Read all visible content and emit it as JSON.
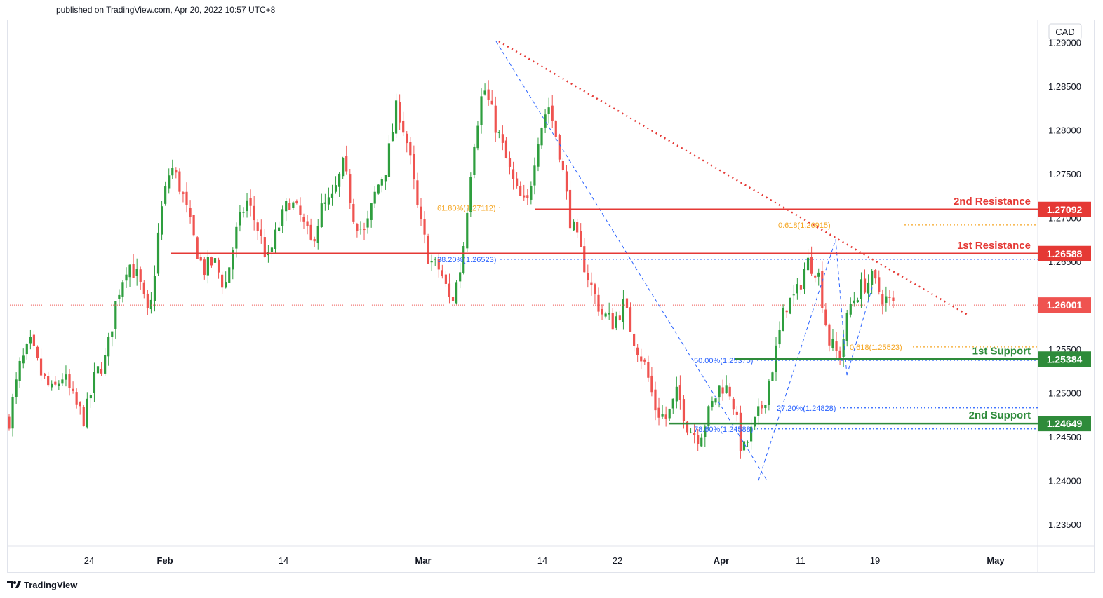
{
  "header": {
    "published": "published on TradingView.com, Apr 20, 2022 10:57 UTC+8"
  },
  "footer": {
    "brand": "TradingView",
    "logo_icon": "tradingview-logo-icon"
  },
  "colors": {
    "up": "#26a69a",
    "upBody": "#2e9e3e",
    "down": "#ef5350",
    "resistance": "#e53935",
    "support": "#2e8b3a",
    "fibBlue": "#2962ff",
    "fibOrange": "#f5a623",
    "current": "#ef5350"
  },
  "chart_data": {
    "type": "candlestick",
    "symbol_currency": "CAD",
    "ylim": [
      1.2325,
      1.2925
    ],
    "y_ticks": [
      "1.23500",
      "1.24000",
      "1.24500",
      "1.25000",
      "1.25500",
      "1.26000",
      "1.26500",
      "1.27000",
      "1.27500",
      "1.28000",
      "1.28500",
      "1.29000"
    ],
    "x_ticks": [
      "24",
      "Feb",
      "14",
      "Mar",
      "14",
      "22",
      "Apr",
      "11",
      "19",
      "May"
    ],
    "current_price": "1.26001",
    "levels": [
      {
        "name": "2nd Resistance",
        "price": "1.27092",
        "kind": "resistance"
      },
      {
        "name": "1st Resistance",
        "price": "1.26588",
        "kind": "resistance"
      },
      {
        "name": "1st Support",
        "price": "1.25384",
        "kind": "support"
      },
      {
        "name": "2nd Support",
        "price": "1.24649",
        "kind": "support"
      }
    ],
    "fib_labels": [
      {
        "text": "61.80%(1.27112)",
        "price": 1.27112,
        "color": "orange"
      },
      {
        "text": "0.618(1.26915)",
        "price": 1.26915,
        "color": "orange"
      },
      {
        "text": "38.20%(1.26523)",
        "price": 1.26523,
        "color": "blue"
      },
      {
        "text": "0.618(1.25523)",
        "price": 1.25523,
        "color": "orange"
      },
      {
        "text": "50.00%(1.25370)",
        "price": 1.2537,
        "color": "blue"
      },
      {
        "text": "27.20%(1.24828)",
        "price": 1.24828,
        "color": "blue"
      },
      {
        "text": "78.60%(1.24588)",
        "price": 1.24588,
        "color": "blue"
      }
    ],
    "trendline": {
      "from": [
        1.2901
      ],
      "to": [
        1.2588
      ]
    },
    "close_path": [
      1.247,
      1.253,
      1.2555,
      1.252,
      1.25,
      1.252,
      1.249,
      1.247,
      1.252,
      1.254,
      1.261,
      1.265,
      1.263,
      1.258,
      1.27,
      1.276,
      1.273,
      1.268,
      1.264,
      1.265,
      1.262,
      1.268,
      1.272,
      1.269,
      1.265,
      1.269,
      1.272,
      1.27,
      1.267,
      1.271,
      1.272,
      1.276,
      1.27,
      1.268,
      1.273,
      1.276,
      1.283,
      1.278,
      1.27,
      1.265,
      1.264,
      1.26,
      1.265,
      1.278,
      1.285,
      1.281,
      1.277,
      1.273,
      1.271,
      1.279,
      1.283,
      1.278,
      1.27,
      1.266,
      1.262,
      1.259,
      1.258,
      1.26,
      1.256,
      1.253,
      1.248,
      1.247,
      1.25,
      1.246,
      1.245,
      1.248,
      1.251,
      1.25,
      1.243,
      1.246,
      1.249,
      1.254,
      1.26,
      1.261,
      1.265,
      1.264,
      1.256,
      1.254,
      1.26,
      1.262,
      1.263,
      1.261,
      1.26
    ]
  }
}
